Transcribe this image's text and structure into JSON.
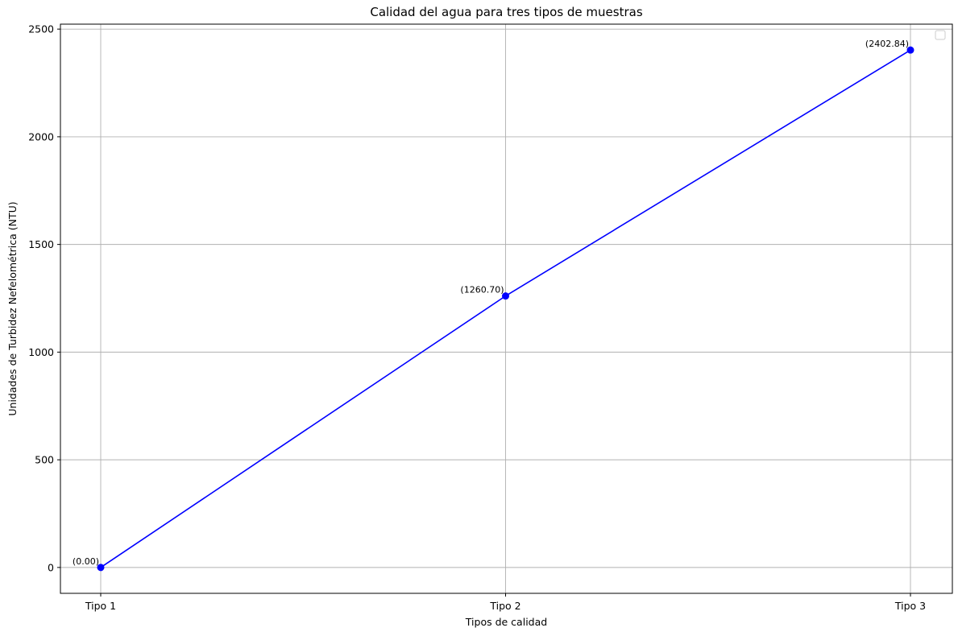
{
  "chart_data": {
    "type": "line",
    "title": "Calidad del agua para tres tipos de muestras",
    "xlabel": "Tipos de calidad",
    "ylabel": "Unidades de Turbidez Nefelométrica (NTU)",
    "categories": [
      "Tipo 1",
      "Tipo 2",
      "Tipo 3"
    ],
    "series": [
      {
        "values": [
          0.0,
          1260.7,
          2402.84
        ],
        "labels": [
          "(0.00)",
          "(1260.70)",
          "(2402.84)"
        ],
        "color": "#0000ff",
        "marker": "circle"
      }
    ],
    "ylim": [
      -120.14,
      2522.98
    ],
    "yticks": [
      0,
      500,
      1000,
      1500,
      2000,
      2500
    ],
    "ytick_labels": [
      "0",
      "500",
      "1000",
      "1500",
      "2000",
      "2500"
    ],
    "grid": true,
    "legend": "top-right (empty)"
  }
}
